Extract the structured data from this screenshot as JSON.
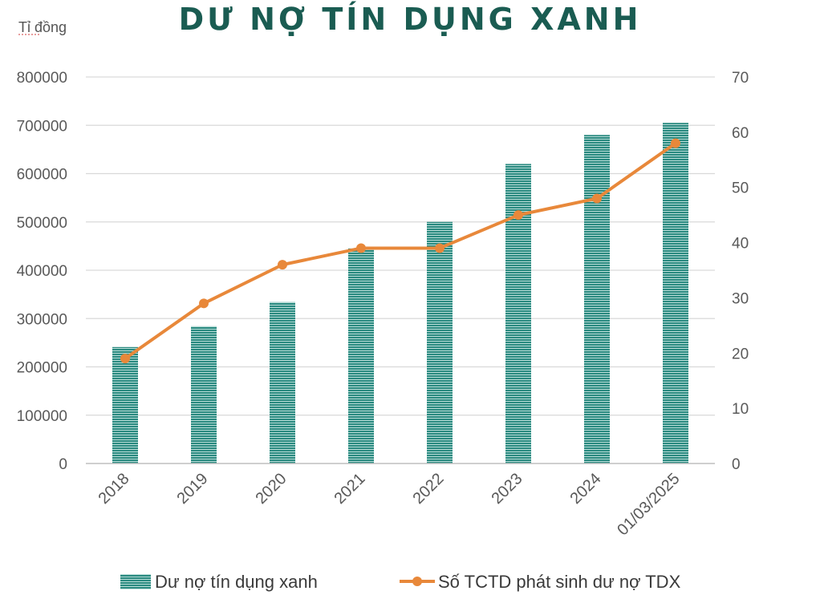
{
  "chart_data": {
    "type": "bar",
    "title": "DƯ NỢ TÍN DỤNG XANH",
    "unit_label": "Tỉ đồng",
    "categories": [
      "2018",
      "2019",
      "2020",
      "2021",
      "2022",
      "2023",
      "2024",
      "01/03/2025"
    ],
    "series": [
      {
        "name": "Dư nợ tín dụng xanh",
        "type": "bar",
        "axis": "left",
        "color": "#2a8a80",
        "values": [
          241000,
          284000,
          334000,
          445000,
          500000,
          620000,
          680000,
          705000
        ]
      },
      {
        "name": "Số TCTD phát sinh dư nợ TDX",
        "type": "line",
        "axis": "right",
        "color": "#e8883a",
        "values": [
          19,
          29,
          36,
          39,
          39,
          45,
          48,
          58
        ]
      }
    ],
    "y_left": {
      "min": 0,
      "max": 800000,
      "ticks": [
        0,
        100000,
        200000,
        300000,
        400000,
        500000,
        600000,
        700000,
        800000
      ]
    },
    "y_right": {
      "min": 0,
      "max": 70,
      "ticks": [
        0,
        10,
        20,
        30,
        40,
        50,
        60,
        70
      ]
    },
    "grid": true,
    "legend_position": "bottom"
  }
}
